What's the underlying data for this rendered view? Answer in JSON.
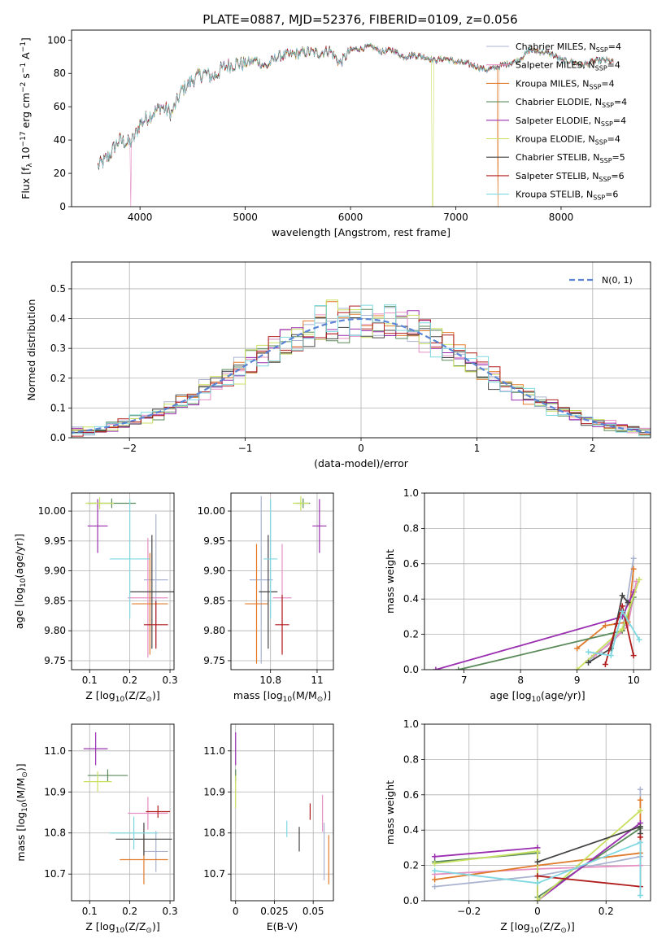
{
  "title": "PLATE=0887, MJD=52376, FIBERID=0109, z=0.056",
  "colors": {
    "Chabrier MILES": "#aab4d0",
    "Salpeter MILES": "#e58fc4",
    "Kroupa MILES": "#e07b2c",
    "Chabrier ELODIE": "#5a8a5a",
    "Salpeter ELODIE": "#9a2fb0",
    "Kroupa ELODIE": "#c8e060",
    "Chabrier STELIB": "#444444",
    "Salpeter STELIB": "#b01c1c",
    "Kroupa STELIB": "#7fd8e0"
  },
  "chart_data": [
    {
      "id": "spectrum",
      "type": "line",
      "title": "PLATE=0887, MJD=52376, FIBERID=0109, z=0.056",
      "xlabel": "wavelength [Angstrom, rest frame]",
      "ylabel": "Flux [f_λ 10^-17 erg cm^-2 s^-1 A^-1]",
      "xlim": [
        3350,
        8850
      ],
      "ylim": [
        0,
        106
      ],
      "xticks": [
        4000,
        5000,
        6000,
        7000,
        8000
      ],
      "yticks": [
        0,
        20,
        40,
        60,
        80,
        100
      ],
      "x": [
        3600,
        3700,
        3800,
        3900,
        3950,
        4000,
        4100,
        4200,
        4300,
        4400,
        4500,
        4600,
        4700,
        4800,
        4900,
        5000,
        5100,
        5200,
        5300,
        5400,
        5500,
        5600,
        5700,
        5800,
        5900,
        6000,
        6100,
        6200,
        6300,
        6400,
        6500,
        6600,
        6700,
        6800,
        6900,
        7000,
        7100,
        7200,
        7300,
        7400,
        7500,
        7600,
        7700,
        7800,
        7900,
        8000,
        8100,
        8200,
        8300,
        8400,
        8500
      ],
      "y": [
        24,
        30,
        40,
        38,
        42,
        50,
        55,
        60,
        56,
        70,
        76,
        80,
        78,
        84,
        86,
        86,
        88,
        84,
        90,
        91,
        92,
        93,
        92,
        94,
        86,
        94,
        95,
        96,
        93,
        94,
        90,
        91,
        90,
        88,
        89,
        87,
        86,
        84,
        82,
        84,
        86,
        88,
        94,
        93,
        92,
        88,
        87,
        85,
        87,
        88,
        87
      ],
      "legend": [
        {
          "name": "Chabrier MILES",
          "nssp": "4"
        },
        {
          "name": "Salpeter MILES",
          "nssp": "4"
        },
        {
          "name": "Kroupa MILES",
          "nssp": "4"
        },
        {
          "name": "Chabrier ELODIE",
          "nssp": "4"
        },
        {
          "name": "Salpeter ELODIE",
          "nssp": "4"
        },
        {
          "name": "Kroupa ELODIE",
          "nssp": "4"
        },
        {
          "name": "Chabrier STELIB",
          "nssp": "5"
        },
        {
          "name": "Salpeter STELIB",
          "nssp": "6"
        },
        {
          "name": "Kroupa STELIB",
          "nssp": "6"
        }
      ],
      "legend_placement": "right",
      "grid": false
    },
    {
      "id": "residuals",
      "type": "line",
      "xlabel": "(data-model)/error",
      "ylabel": "Normed distribution",
      "xlim": [
        -2.5,
        2.5
      ],
      "ylim": [
        0,
        0.59
      ],
      "xticks": [
        -2,
        -1,
        0,
        1,
        2
      ],
      "yticks": [
        0.0,
        0.1,
        0.2,
        0.3,
        0.4,
        0.5
      ],
      "legend": "N(0, 1)",
      "legend_placement": "top-right",
      "grid": true
    },
    {
      "id": "age_vs_Z",
      "type": "scatter",
      "xlabel": "Z [log10(Z/Z⊙)]",
      "ylabel": "age  [log10(age/yr)]",
      "xlim": [
        0.055,
        0.31
      ],
      "ylim": [
        9.735,
        10.03
      ],
      "xticks": [
        0.1,
        0.2,
        0.3
      ],
      "yticks": [
        9.75,
        9.8,
        9.85,
        9.9,
        9.95,
        10.0
      ],
      "points": [
        {
          "series": "Chabrier MILES",
          "x": 0.265,
          "y": 9.885,
          "xerr": 0.03,
          "yerr": 0.11
        },
        {
          "series": "Salpeter MILES",
          "x": 0.245,
          "y": 9.855,
          "xerr": 0.05,
          "yerr": 0.1
        },
        {
          "series": "Kroupa MILES",
          "x": 0.25,
          "y": 9.845,
          "xerr": 0.045,
          "yerr": 0.085
        },
        {
          "series": "Chabrier ELODIE",
          "x": 0.155,
          "y": 10.013,
          "xerr": 0.06,
          "yerr": 0.008
        },
        {
          "series": "Salpeter ELODIE",
          "x": 0.12,
          "y": 9.975,
          "xerr": 0.025,
          "yerr": 0.045
        },
        {
          "series": "Kroupa ELODIE",
          "x": 0.125,
          "y": 10.013,
          "xerr": 0.035,
          "yerr": 0.01
        },
        {
          "series": "Chabrier STELIB",
          "x": 0.255,
          "y": 9.865,
          "xerr": 0.055,
          "yerr": 0.095
        },
        {
          "series": "Salpeter STELIB",
          "x": 0.265,
          "y": 9.81,
          "xerr": 0.03,
          "yerr": 0.04
        },
        {
          "series": "Kroupa STELIB",
          "x": 0.2,
          "y": 9.92,
          "xerr": 0.05,
          "yerr": 0.1
        }
      ],
      "grid": true
    },
    {
      "id": "age_vs_mass",
      "type": "scatter",
      "xlabel": "mass [log10(M/M⊙)]",
      "ylabel": "",
      "xlim": [
        10.63,
        11.07
      ],
      "ylim": [
        9.735,
        10.03
      ],
      "xticks": [
        10.8,
        11.0
      ],
      "yticks": [
        9.75,
        9.8,
        9.85,
        9.9,
        9.95,
        10.0
      ],
      "points": [
        {
          "series": "Chabrier MILES",
          "x": 10.76,
          "y": 9.885,
          "xerr": 0.05,
          "yerr": 0.14
        },
        {
          "series": "Salpeter MILES",
          "x": 10.85,
          "y": 9.855,
          "xerr": 0.04,
          "yerr": 0.09
        },
        {
          "series": "Kroupa MILES",
          "x": 10.74,
          "y": 9.845,
          "xerr": 0.05,
          "yerr": 0.1
        },
        {
          "series": "Chabrier ELODIE",
          "x": 10.94,
          "y": 10.013,
          "xerr": 0.03,
          "yerr": 0.008
        },
        {
          "series": "Salpeter ELODIE",
          "x": 11.01,
          "y": 9.975,
          "xerr": 0.03,
          "yerr": 0.045
        },
        {
          "series": "Kroupa ELODIE",
          "x": 10.93,
          "y": 10.013,
          "xerr": 0.035,
          "yerr": 0.012
        },
        {
          "series": "Chabrier STELIB",
          "x": 10.79,
          "y": 9.865,
          "xerr": 0.04,
          "yerr": 0.095
        },
        {
          "series": "Salpeter STELIB",
          "x": 10.85,
          "y": 9.81,
          "xerr": 0.03,
          "yerr": 0.05
        },
        {
          "series": "Kroupa STELIB",
          "x": 10.8,
          "y": 9.92,
          "xerr": 0.03,
          "yerr": 0.1
        }
      ],
      "grid": true
    },
    {
      "id": "weight_vs_age",
      "type": "line",
      "xlabel": "age  [log10(age/yr)]",
      "ylabel": "mass weight",
      "xlim": [
        6.3,
        10.3
      ],
      "ylim": [
        0,
        1.0
      ],
      "xticks": [
        7,
        8,
        9,
        10
      ],
      "yticks": [
        0.0,
        0.2,
        0.4,
        0.6,
        0.8,
        1.0
      ],
      "grid": true,
      "series": [
        {
          "name": "Chabrier MILES",
          "x": [
            9.2,
            9.4,
            9.8,
            10.0
          ],
          "y": [
            0.05,
            0.1,
            0.22,
            0.63
          ]
        },
        {
          "name": "Salpeter MILES",
          "x": [
            9.3,
            9.6,
            9.9,
            10.05
          ],
          "y": [
            0.08,
            0.15,
            0.25,
            0.5
          ]
        },
        {
          "name": "Kroupa MILES",
          "x": [
            9.0,
            9.5,
            9.9,
            10.0
          ],
          "y": [
            0.12,
            0.25,
            0.27,
            0.57
          ]
        },
        {
          "name": "Chabrier ELODIE",
          "x": [
            6.9,
            9.8,
            10.0
          ],
          "y": [
            0.0,
            0.22,
            0.41
          ]
        },
        {
          "name": "Salpeter ELODIE",
          "x": [
            6.5,
            9.8,
            10.0
          ],
          "y": [
            0.0,
            0.3,
            0.44
          ]
        },
        {
          "name": "Kroupa ELODIE",
          "x": [
            9.0,
            9.8,
            10.1
          ],
          "y": [
            0.0,
            0.23,
            0.51
          ]
        },
        {
          "name": "Chabrier STELIB",
          "x": [
            9.2,
            9.6,
            9.8,
            9.9
          ],
          "y": [
            0.04,
            0.12,
            0.42,
            0.38
          ]
        },
        {
          "name": "Salpeter STELIB",
          "x": [
            9.5,
            9.7,
            9.8,
            10.0
          ],
          "y": [
            0.03,
            0.26,
            0.36,
            0.08
          ]
        },
        {
          "name": "Kroupa STELIB",
          "x": [
            9.2,
            9.6,
            9.8,
            10.1
          ],
          "y": [
            0.1,
            0.08,
            0.33,
            0.17
          ]
        }
      ]
    },
    {
      "id": "mass_vs_Z",
      "type": "scatter",
      "xlabel": "Z [log10(Z/Z⊙)]",
      "ylabel": "mass [log10(M/M⊙)]",
      "xlim": [
        0.055,
        0.31
      ],
      "ylim": [
        10.635,
        11.065
      ],
      "xticks": [
        0.1,
        0.2,
        0.3
      ],
      "yticks": [
        10.7,
        10.8,
        10.9,
        11.0
      ],
      "points": [
        {
          "series": "Chabrier MILES",
          "x": 0.265,
          "y": 10.755,
          "xerr": 0.03,
          "yerr": 0.05
        },
        {
          "series": "Salpeter MILES",
          "x": 0.245,
          "y": 10.848,
          "xerr": 0.05,
          "yerr": 0.04
        },
        {
          "series": "Kroupa MILES",
          "x": 0.235,
          "y": 10.735,
          "xerr": 0.06,
          "yerr": 0.06
        },
        {
          "series": "Chabrier ELODIE",
          "x": 0.145,
          "y": 10.94,
          "xerr": 0.05,
          "yerr": 0.015
        },
        {
          "series": "Salpeter ELODIE",
          "x": 0.115,
          "y": 11.005,
          "xerr": 0.03,
          "yerr": 0.04
        },
        {
          "series": "Kroupa ELODIE",
          "x": 0.12,
          "y": 10.925,
          "xerr": 0.035,
          "yerr": 0.025
        },
        {
          "series": "Chabrier STELIB",
          "x": 0.235,
          "y": 10.785,
          "xerr": 0.07,
          "yerr": 0.04
        },
        {
          "series": "Salpeter STELIB",
          "x": 0.27,
          "y": 10.852,
          "xerr": 0.03,
          "yerr": 0.015
        },
        {
          "series": "Kroupa STELIB",
          "x": 0.21,
          "y": 10.8,
          "xerr": 0.06,
          "yerr": 0.04
        }
      ],
      "grid": true
    },
    {
      "id": "mass_vs_ebv",
      "type": "scatter",
      "xlabel": "E(B-V)",
      "ylabel": "",
      "xlim": [
        -0.003,
        0.063
      ],
      "ylim": [
        10.635,
        11.065
      ],
      "xticks": [
        0.0,
        0.025,
        0.05
      ],
      "yticks": [
        10.7,
        10.8,
        10.9,
        11.0
      ],
      "points": [
        {
          "series": "Chabrier MILES",
          "x": 0.057,
          "y": 10.755,
          "xerr": 0.0,
          "yerr": 0.07
        },
        {
          "series": "Salpeter MILES",
          "x": 0.056,
          "y": 10.848,
          "xerr": 0.0,
          "yerr": 0.045
        },
        {
          "series": "Kroupa MILES",
          "x": 0.06,
          "y": 10.735,
          "xerr": 0.0,
          "yerr": 0.06
        },
        {
          "series": "Chabrier ELODIE",
          "x": 0.0,
          "y": 10.94,
          "xerr": 0.0,
          "yerr": 0.015
        },
        {
          "series": "Salpeter ELODIE",
          "x": 0.0,
          "y": 11.005,
          "xerr": 0.0,
          "yerr": 0.04
        },
        {
          "series": "Kroupa ELODIE",
          "x": 0.0,
          "y": 10.9,
          "xerr": 0.0,
          "yerr": 0.04
        },
        {
          "series": "Chabrier STELIB",
          "x": 0.041,
          "y": 10.785,
          "xerr": 0.0,
          "yerr": 0.03
        },
        {
          "series": "Salpeter STELIB",
          "x": 0.048,
          "y": 10.852,
          "xerr": 0.0,
          "yerr": 0.02
        },
        {
          "series": "Kroupa STELIB",
          "x": 0.033,
          "y": 10.81,
          "xerr": 0.0,
          "yerr": 0.02
        }
      ],
      "grid": true
    },
    {
      "id": "weight_vs_Z",
      "type": "line",
      "xlabel": "Z [log10(Z/Z⊙)]",
      "ylabel": "mass weight",
      "xlim": [
        -0.33,
        0.33
      ],
      "ylim": [
        0,
        1.0
      ],
      "xticks": [
        -0.2,
        0.0,
        0.2
      ],
      "yticks": [
        0.0,
        0.2,
        0.4,
        0.6,
        0.8,
        1.0
      ],
      "grid": true,
      "series": [
        {
          "name": "Chabrier MILES",
          "x": [
            -0.3,
            0.0,
            0.3,
            0.3
          ],
          "y": [
            0.08,
            0.14,
            0.25,
            0.63
          ]
        },
        {
          "name": "Salpeter MILES",
          "x": [
            -0.3,
            0.0,
            0.3
          ],
          "y": [
            0.15,
            0.18,
            0.2
          ]
        },
        {
          "name": "Kroupa MILES",
          "x": [
            -0.3,
            0.0,
            0.3,
            0.3
          ],
          "y": [
            0.12,
            0.2,
            0.27,
            0.57
          ]
        },
        {
          "name": "Chabrier ELODIE",
          "x": [
            -0.3,
            0.0,
            0.0,
            0.3
          ],
          "y": [
            0.22,
            0.27,
            0.02,
            0.41
          ]
        },
        {
          "name": "Salpeter ELODIE",
          "x": [
            -0.3,
            0.0,
            0.0,
            0.3
          ],
          "y": [
            0.25,
            0.3,
            0.0,
            0.44
          ]
        },
        {
          "name": "Kroupa ELODIE",
          "x": [
            -0.3,
            0.0,
            0.0,
            0.3
          ],
          "y": [
            0.21,
            0.28,
            0.0,
            0.51
          ]
        },
        {
          "name": "Chabrier STELIB",
          "x": [
            0.0,
            0.3,
            0.3
          ],
          "y": [
            0.22,
            0.42,
            0.38
          ]
        },
        {
          "name": "Salpeter STELIB",
          "x": [
            0.0,
            0.3,
            0.3
          ],
          "y": [
            0.14,
            0.08,
            0.36
          ]
        },
        {
          "name": "Kroupa STELIB",
          "x": [
            -0.3,
            0.0,
            0.3,
            0.3
          ],
          "y": [
            0.17,
            0.1,
            0.33,
            0.03
          ]
        }
      ]
    }
  ]
}
